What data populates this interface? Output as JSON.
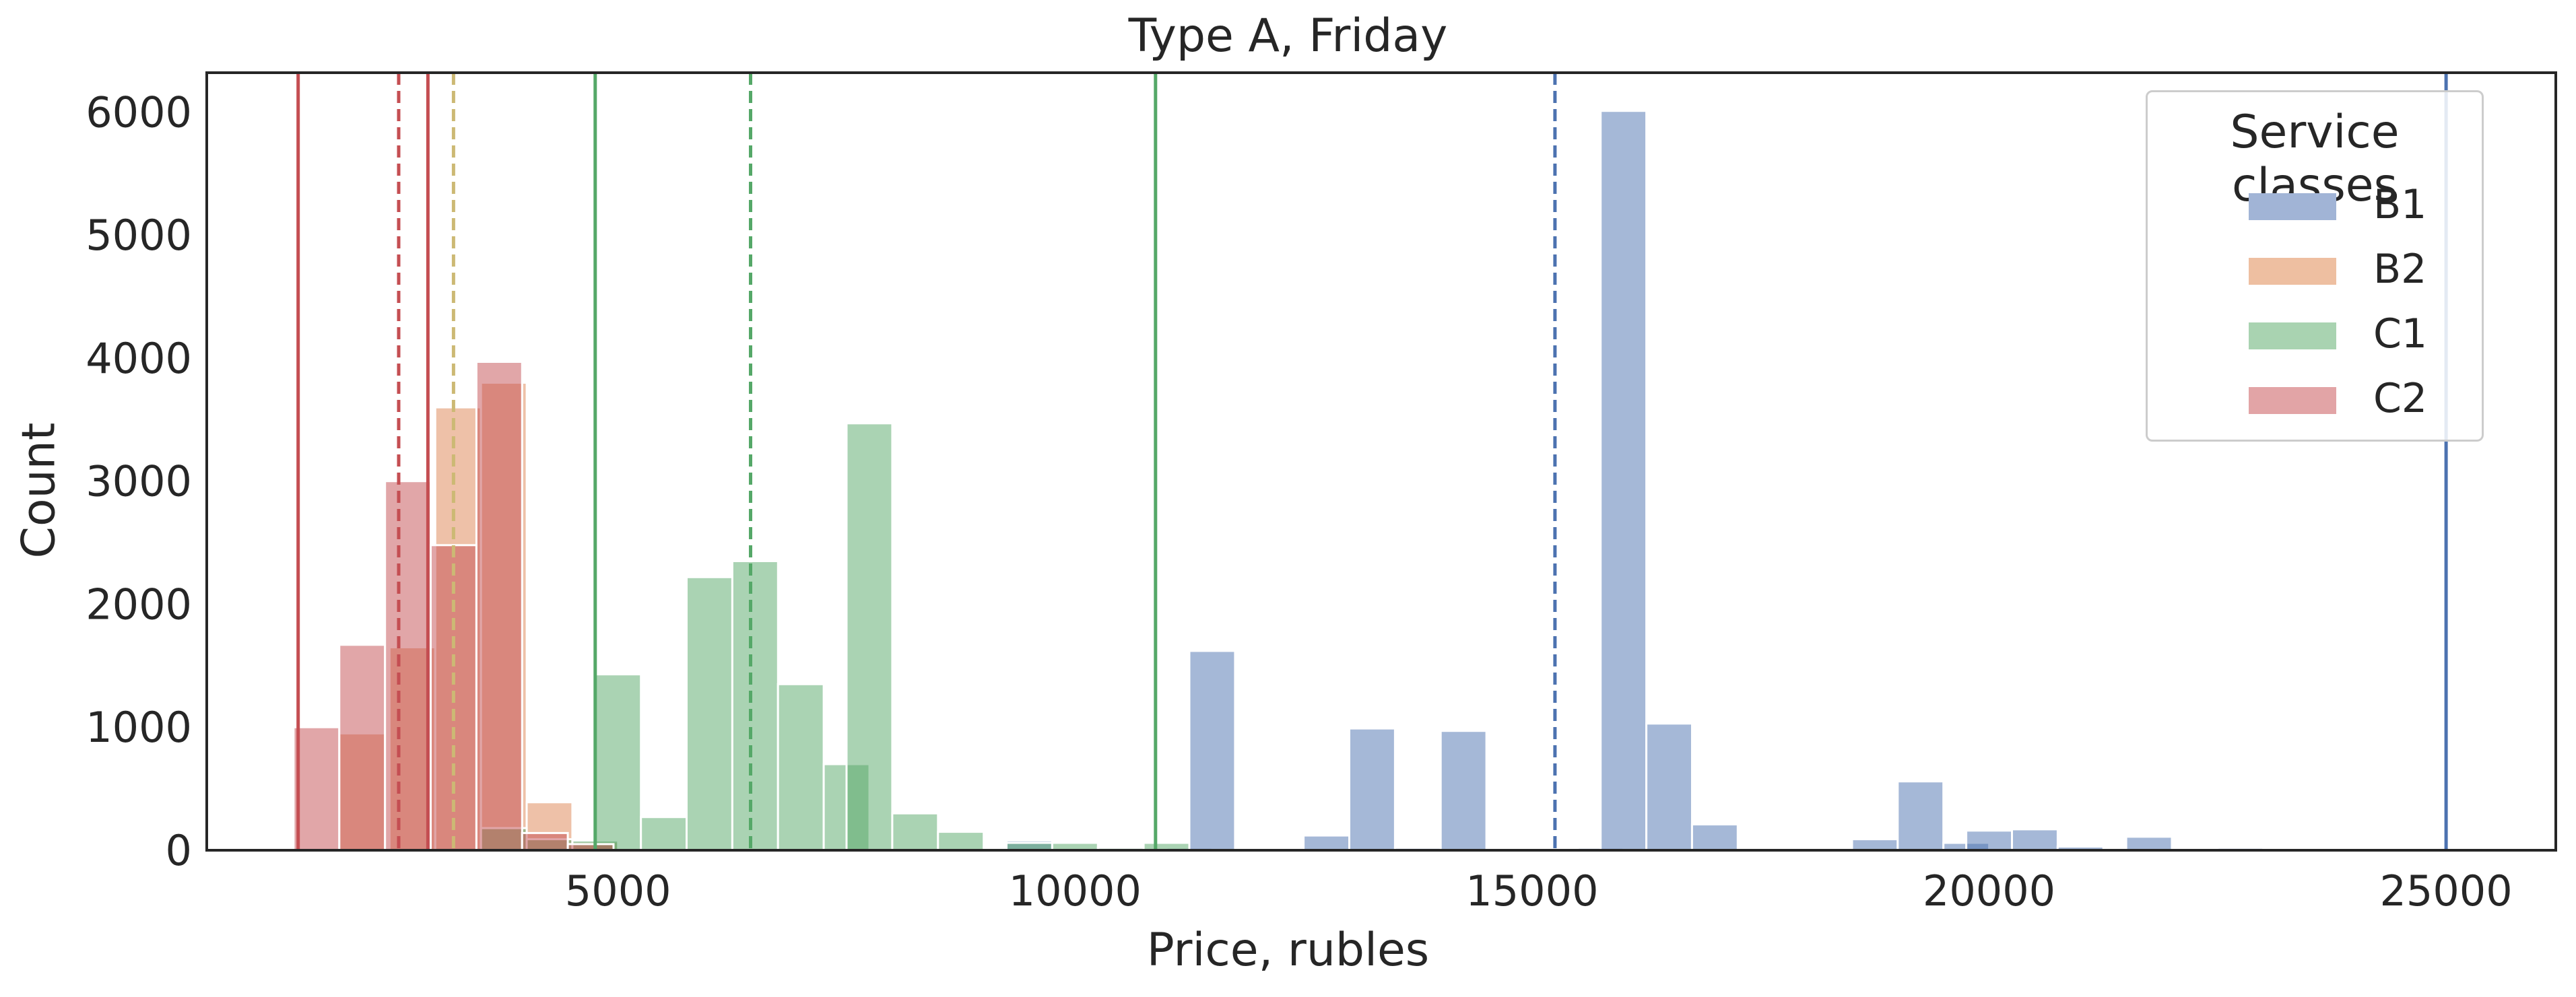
{
  "chart_data": {
    "type": "bar",
    "title": "Type A, Friday",
    "xlabel": "Price, rubles",
    "ylabel": "Count",
    "xlim": [
      500,
      26200
    ],
    "ylim": [
      0,
      6320
    ],
    "xticks": [
      "5000",
      "10000",
      "15000",
      "20000",
      "25000"
    ],
    "yticks": [
      "0",
      "1000",
      "2000",
      "3000",
      "4000",
      "5000",
      "6000"
    ],
    "grid": false,
    "bin_width": 500,
    "legend": {
      "title": "Service classes",
      "placement": "top-right",
      "entries": [
        "B1",
        "B2",
        "C1",
        "C2"
      ]
    },
    "series": [
      {
        "name": "B1",
        "color": "#4c72b0",
        "bins": [
          [
            2500,
            10
          ],
          [
            3000,
            20
          ],
          [
            9250,
            80
          ],
          [
            10250,
            20
          ],
          [
            11000,
            20
          ],
          [
            11250,
            1620
          ],
          [
            12500,
            120
          ],
          [
            13000,
            990
          ],
          [
            13500,
            20
          ],
          [
            14000,
            970
          ],
          [
            15500,
            20
          ],
          [
            15750,
            6010
          ],
          [
            16250,
            1030
          ],
          [
            16750,
            210
          ],
          [
            18500,
            90
          ],
          [
            19000,
            560
          ],
          [
            19500,
            60
          ],
          [
            19750,
            160
          ],
          [
            20250,
            170
          ],
          [
            20750,
            30
          ],
          [
            21500,
            110
          ],
          [
            22500,
            20
          ]
        ]
      },
      {
        "name": "B2",
        "color": "#dd8452",
        "bins": [
          [
            1950,
            950
          ],
          [
            2500,
            1650
          ],
          [
            3000,
            3600
          ],
          [
            3500,
            3800
          ],
          [
            4000,
            390
          ],
          [
            4500,
            70
          ]
        ]
      },
      {
        "name": "C1",
        "color": "#55a868",
        "bins": [
          [
            3500,
            180
          ],
          [
            4000,
            90
          ],
          [
            4500,
            80
          ],
          [
            4750,
            1430
          ],
          [
            5250,
            270
          ],
          [
            5750,
            2220
          ],
          [
            6250,
            2350
          ],
          [
            6750,
            1350
          ],
          [
            7250,
            700
          ],
          [
            7500,
            3470
          ],
          [
            8000,
            300
          ],
          [
            8500,
            150
          ],
          [
            9250,
            60
          ],
          [
            9750,
            60
          ],
          [
            10250,
            20
          ],
          [
            10750,
            60
          ]
        ]
      },
      {
        "name": "C2",
        "color": "#c44e52",
        "bins": [
          [
            1450,
            1000
          ],
          [
            1950,
            1670
          ],
          [
            2450,
            3000
          ],
          [
            2950,
            2480
          ],
          [
            3450,
            3970
          ],
          [
            3950,
            140
          ],
          [
            4450,
            50
          ]
        ]
      }
    ],
    "vertical_lines": [
      {
        "x": 1500,
        "color": "#c44e52",
        "style": "solid"
      },
      {
        "x": 2600,
        "color": "#c44e52",
        "style": "dashed"
      },
      {
        "x": 2920,
        "color": "#c44e52",
        "style": "solid"
      },
      {
        "x": 3200,
        "color": "#ccb974",
        "style": "dashed"
      },
      {
        "x": 4750,
        "color": "#55a868",
        "style": "solid"
      },
      {
        "x": 6450,
        "color": "#55a868",
        "style": "dashed"
      },
      {
        "x": 10880,
        "color": "#55a868",
        "style": "solid"
      },
      {
        "x": 15250,
        "color": "#4c72b0",
        "style": "dashed"
      },
      {
        "x": 25000,
        "color": "#4c72b0",
        "style": "solid"
      }
    ]
  }
}
